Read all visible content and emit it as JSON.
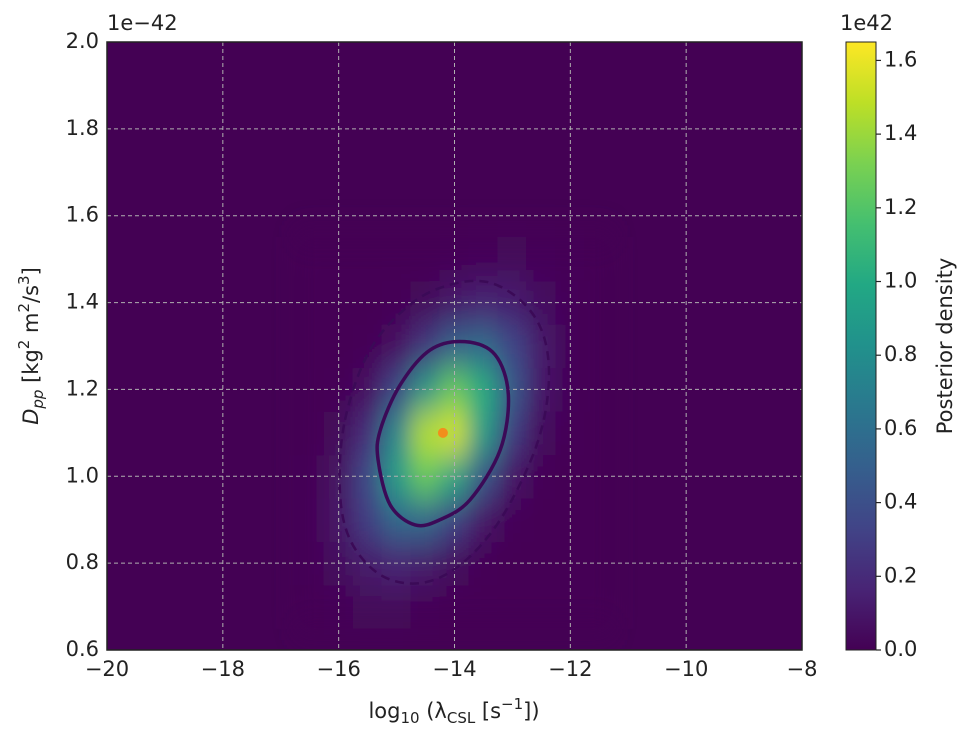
{
  "chart_data": {
    "type": "contour",
    "colormap": "viridis",
    "x": [
      -16.5,
      -16,
      -15.5,
      -15,
      -14.5,
      -14,
      -13.5,
      -13,
      -12.5,
      -12,
      -11.5
    ],
    "y": [
      0.7,
      0.8,
      0.9,
      1.0,
      1.1,
      1.2,
      1.3,
      1.4,
      1.5
    ],
    "z": [
      [
        0,
        0.01,
        0.03,
        0.03,
        0.01,
        0,
        0,
        0,
        0,
        0,
        0
      ],
      [
        0.01,
        0.05,
        0.12,
        0.16,
        0.12,
        0.05,
        0.01,
        0,
        0,
        0,
        0
      ],
      [
        0.01,
        0.09,
        0.29,
        0.54,
        0.54,
        0.31,
        0.1,
        0.02,
        0,
        0,
        0
      ],
      [
        0.01,
        0.08,
        0.36,
        0.9,
        1.26,
        0.97,
        0.42,
        0.1,
        0.01,
        0,
        0
      ],
      [
        0,
        0.03,
        0.22,
        0.76,
        1.46,
        1.54,
        0.91,
        0.29,
        0.05,
        0.01,
        0
      ],
      [
        0,
        0.01,
        0.07,
        0.33,
        0.86,
        1.26,
        1.02,
        0.45,
        0.11,
        0.02,
        0
      ],
      [
        0,
        0,
        0.01,
        0.07,
        0.26,
        0.51,
        0.57,
        0.35,
        0.12,
        0.02,
        0
      ],
      [
        0,
        0,
        0,
        0.01,
        0.04,
        0.11,
        0.16,
        0.14,
        0.06,
        0.02,
        0
      ],
      [
        0,
        0,
        0,
        0,
        0,
        0.01,
        0.02,
        0.03,
        0.02,
        0.01,
        0
      ]
    ],
    "contours": [
      {
        "style": "solid",
        "color": "#3b0a57",
        "x": [
          -15.28,
          -14.94,
          -14.42,
          -13.82,
          -13.3,
          -13.07,
          -13.21,
          -13.73,
          -14.25,
          -14.68,
          -15.11,
          -15.32
        ],
        "y": [
          1.107,
          1.21,
          1.291,
          1.31,
          1.28,
          1.188,
          1.061,
          0.946,
          0.9,
          0.888,
          0.934,
          1.038
        ]
      },
      {
        "style": "dashed",
        "color": "#3b0a57",
        "x": [
          -15.89,
          -15.46,
          -14.77,
          -14.08,
          -13.39,
          -12.78,
          -12.44,
          -12.38,
          -12.61,
          -13.21,
          -13.9,
          -14.59,
          -15.28,
          -15.8,
          -15.98
        ],
        "y": [
          1.13,
          1.291,
          1.395,
          1.441,
          1.446,
          1.395,
          1.314,
          1.199,
          1.061,
          0.9,
          0.796,
          0.754,
          0.773,
          0.853,
          0.969
        ]
      }
    ],
    "peak": {
      "x": -14.2,
      "y": 1.1,
      "color": "#f28e1c"
    },
    "xlim": [
      -20,
      -8
    ],
    "xticks": [
      {
        "value": -20,
        "label": "−20"
      },
      {
        "value": -18,
        "label": "−18"
      },
      {
        "value": -16,
        "label": "−16"
      },
      {
        "value": -14,
        "label": "−14"
      },
      {
        "value": -12,
        "label": "−12"
      },
      {
        "value": -10,
        "label": "−10"
      },
      {
        "value": -8,
        "label": "−8"
      }
    ],
    "ylim": [
      0.6,
      2.0
    ],
    "yticks": [
      0.6,
      0.8,
      {
        "value": 1.0,
        "label": "1.0"
      },
      1.2,
      1.4,
      1.6,
      1.8,
      {
        "value": 2.0,
        "label": "2.0"
      }
    ],
    "y_offset_label": "1e−42",
    "grid": true,
    "xlabel": [
      "log",
      "10",
      " (λ",
      "CSL",
      " [s",
      "−1",
      "])"
    ],
    "ylabel": [
      "D",
      "pp",
      " [kg",
      "2",
      " m",
      "2",
      "/s",
      "3",
      "]"
    ],
    "colorbar": {
      "label": "Posterior density",
      "offset_label": "1e42",
      "clim": [
        0,
        1.65
      ],
      "ticks": [
        {
          "value": 0,
          "label": "0.0"
        },
        0.2,
        0.4,
        0.6,
        0.8,
        {
          "value": 1.0,
          "label": "1.0"
        },
        1.2,
        1.4,
        1.6
      ]
    }
  }
}
